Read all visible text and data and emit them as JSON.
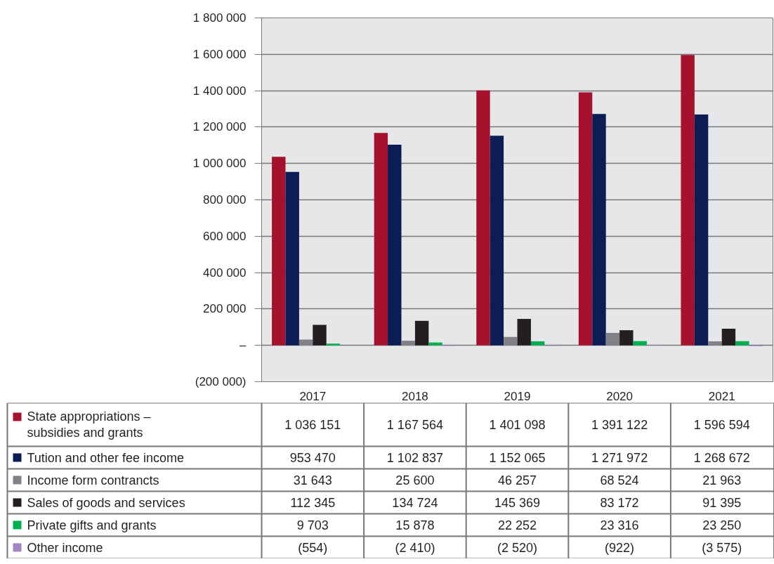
{
  "chart_data": {
    "type": "bar",
    "categories": [
      "2017",
      "2018",
      "2019",
      "2020",
      "2021"
    ],
    "series": [
      {
        "name": "State appropriations –\nsubsidies and grants",
        "color": "#a6122d",
        "values": [
          1036151,
          1167564,
          1401098,
          1391122,
          1596594
        ],
        "value_labels": [
          "1 036 151",
          "1 167 564",
          "1 401 098",
          "1 391 122",
          "1 596 594"
        ]
      },
      {
        "name": "Tution and other fee income",
        "color": "#0c1c55",
        "values": [
          953470,
          1102837,
          1152065,
          1271972,
          1268672
        ],
        "value_labels": [
          "953 470",
          "1 102 837",
          "1 152 065",
          "1 271 972",
          "1 268 672"
        ]
      },
      {
        "name": "Income form contrancts",
        "color": "#808285",
        "values": [
          31643,
          25600,
          46257,
          68524,
          21963
        ],
        "value_labels": [
          "31 643",
          "25 600",
          "46 257",
          "68 524",
          "21 963"
        ]
      },
      {
        "name": "Sales of goods and services",
        "color": "#231f20",
        "values": [
          112345,
          134724,
          145369,
          83172,
          91395
        ],
        "value_labels": [
          "112 345",
          "134 724",
          "145 369",
          "83 172",
          "91 395"
        ]
      },
      {
        "name": "Private gifts and grants",
        "color": "#00b050",
        "values": [
          9703,
          15878,
          22252,
          23316,
          23250
        ],
        "value_labels": [
          "9 703",
          "15 878",
          "22 252",
          "23 316",
          "23 250"
        ]
      },
      {
        "name": "Other income",
        "color": "#a185c2",
        "values": [
          -554,
          -2410,
          -2520,
          -922,
          -3575
        ],
        "value_labels": [
          "(554)",
          "(2 410)",
          "(2 520)",
          "(922)",
          "(3 575)"
        ]
      }
    ],
    "ylim": [
      -200000,
      1800000
    ],
    "yticks": [
      {
        "value": -200000,
        "label": "(200 000)"
      },
      {
        "value": 0,
        "label": "–"
      },
      {
        "value": 200000,
        "label": "200 000"
      },
      {
        "value": 400000,
        "label": "400 000"
      },
      {
        "value": 600000,
        "label": "600 000"
      },
      {
        "value": 800000,
        "label": "800 000"
      },
      {
        "value": 1000000,
        "label": "1 000 000"
      },
      {
        "value": 1200000,
        "label": "1 200 000"
      },
      {
        "value": 1400000,
        "label": "1 400 000"
      },
      {
        "value": 1600000,
        "label": "1 600 000"
      },
      {
        "value": 1800000,
        "label": "1 800 000"
      }
    ],
    "grid": "y",
    "legend": "bottom left"
  }
}
